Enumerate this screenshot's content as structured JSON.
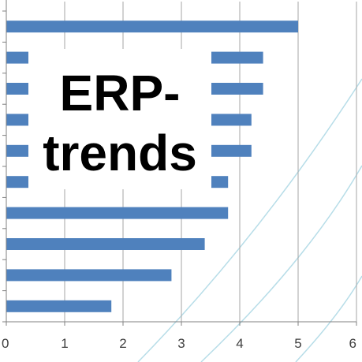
{
  "chart_data": {
    "type": "bar",
    "orientation": "horizontal",
    "title": "",
    "xlabel": "",
    "ylabel": "",
    "xlim": [
      0,
      6
    ],
    "x_ticks": [
      "0",
      "1",
      "2",
      "3",
      "4",
      "5",
      "6"
    ],
    "grid": "vertical",
    "values": [
      5.0,
      4.4,
      4.4,
      4.2,
      4.2,
      3.8,
      3.8,
      3.4,
      2.83,
      1.8
    ],
    "bar_color": "#4f81bd",
    "grid_color": "#a6a6a6",
    "decor_curve_color": "#b7dde8"
  },
  "overlay": {
    "lines": [
      "ERP-",
      "trends"
    ],
    "color": "#000000",
    "background": "#ffffff"
  }
}
